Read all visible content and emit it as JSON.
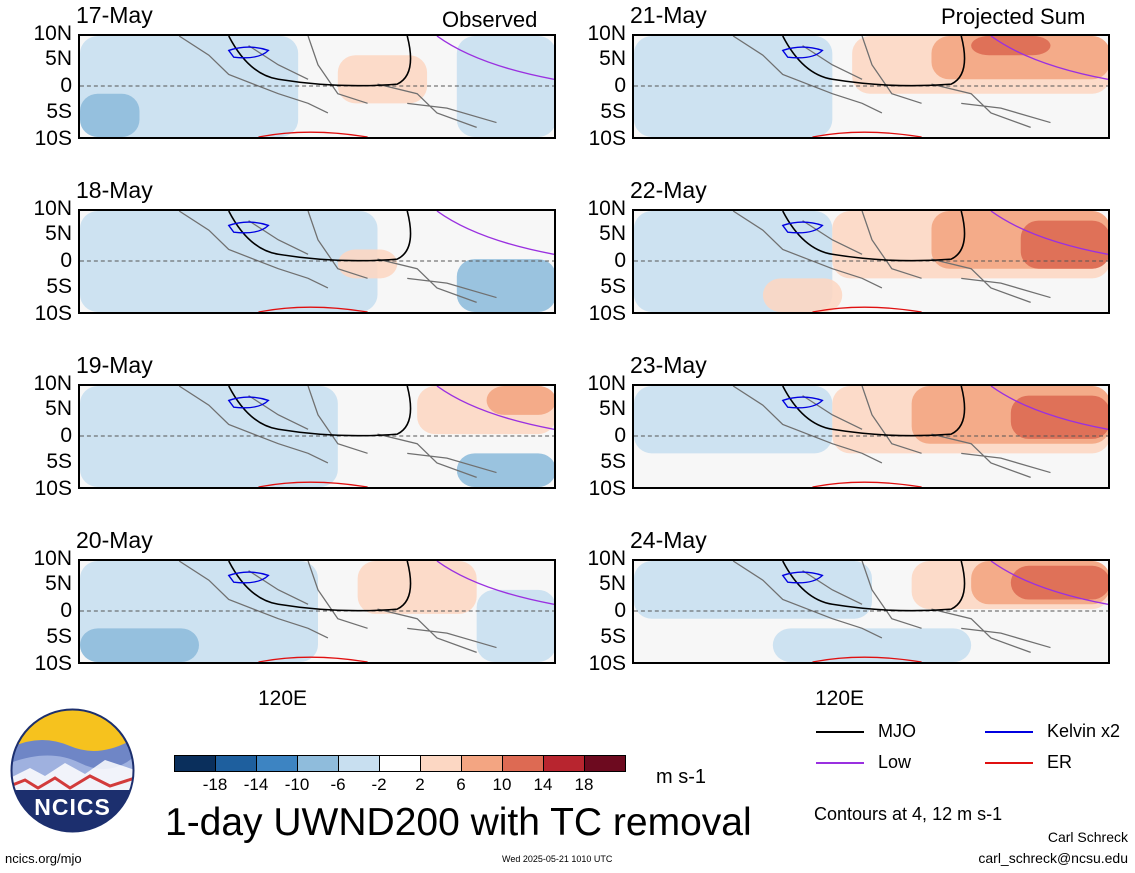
{
  "figure": {
    "left_header": "Observed",
    "right_header": "Projected Sum",
    "title": "1-day UWND200 with TC removal",
    "units": "m s-1",
    "x_tick": "120E",
    "contour_note": "Contours at 4, 12 m s-1",
    "author": "Carl Schreck",
    "email": "carl_schreck@ncsu.edu",
    "website": "ncics.org/mjo",
    "timestamp": "Wed 2025-05-21 1010 UTC",
    "logo_text": "NCICS"
  },
  "lat_labels": [
    "10N",
    "5N",
    "0",
    "5S",
    "10S"
  ],
  "panels_observed": [
    {
      "date": "17-May"
    },
    {
      "date": "18-May"
    },
    {
      "date": "19-May"
    },
    {
      "date": "20-May"
    }
  ],
  "panels_projected": [
    {
      "date": "21-May"
    },
    {
      "date": "22-May"
    },
    {
      "date": "23-May"
    },
    {
      "date": "24-May"
    }
  ],
  "colorbar": {
    "colors": [
      "#0a2f5c",
      "#1e5f9e",
      "#3d84c2",
      "#8fbcdc",
      "#c8dff0",
      "#ffffff",
      "#fcd7c3",
      "#f3a582",
      "#dd6a53",
      "#b8252f",
      "#6d0a1f"
    ],
    "ticks": [
      "-18",
      "-14",
      "-10",
      "-6",
      "-2",
      "2",
      "6",
      "10",
      "14",
      "18"
    ]
  },
  "legend": [
    {
      "label": "MJO",
      "color": "#000000"
    },
    {
      "label": "Kelvin x2",
      "color": "#0000e0"
    },
    {
      "label": "Low",
      "color": "#9a30e0"
    },
    {
      "label": "ER",
      "color": "#e01010"
    }
  ]
}
